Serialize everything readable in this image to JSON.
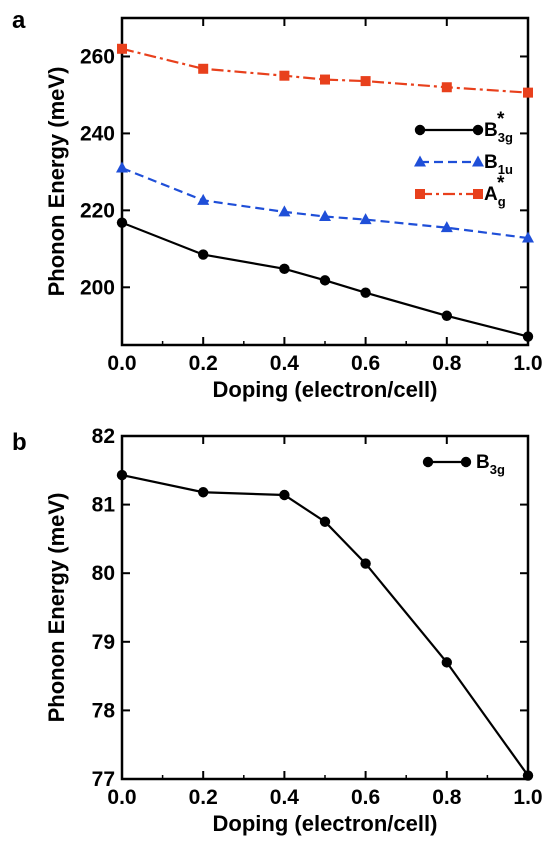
{
  "chart_data": [
    {
      "panel_label": "a",
      "type": "line",
      "xlabel": "Doping (electron/cell)",
      "ylabel": "Phonon Energy (meV)",
      "xlim": [
        0.0,
        1.0
      ],
      "ylim": [
        185,
        270
      ],
      "xticks": [
        0.0,
        0.2,
        0.4,
        0.6,
        0.8,
        1.0
      ],
      "xtick_labels": [
        "0.0",
        "0.2",
        "0.4",
        "0.6",
        "0.8",
        "1.0"
      ],
      "yticks": [
        200,
        220,
        240,
        260
      ],
      "ytick_labels": [
        "200",
        "220",
        "240",
        "260"
      ],
      "grid": false,
      "legend_position": "right",
      "x": [
        0.0,
        0.2,
        0.4,
        0.5,
        0.6,
        0.8,
        1.0
      ],
      "series": [
        {
          "name": "B3g*",
          "legend_base": "B",
          "legend_sub": "3g",
          "legend_sup": "*",
          "color": "#000000",
          "marker": "circle",
          "line_style": "solid",
          "values": [
            216.8,
            208.5,
            204.8,
            201.8,
            198.6,
            192.6,
            187.2
          ]
        },
        {
          "name": "B1u",
          "legend_base": "B",
          "legend_sub": "1u",
          "legend_sup": "",
          "color": "#1f4fd8",
          "marker": "triangle",
          "line_style": "dashed",
          "values": [
            231.0,
            222.6,
            219.6,
            218.4,
            217.6,
            215.5,
            212.8
          ]
        },
        {
          "name": "Ag*",
          "legend_base": "A",
          "legend_sub": "g",
          "legend_sup": "*",
          "color": "#e8401c",
          "marker": "square",
          "line_style": "dashdot",
          "values": [
            262.0,
            256.8,
            255.0,
            254.0,
            253.6,
            252.0,
            250.6
          ]
        }
      ]
    },
    {
      "panel_label": "b",
      "type": "line",
      "xlabel": "Doping (electron/cell)",
      "ylabel": "Phonon Energy (meV)",
      "xlim": [
        0.0,
        1.0
      ],
      "ylim": [
        77,
        82
      ],
      "xticks": [
        0.0,
        0.2,
        0.4,
        0.6,
        0.8,
        1.0
      ],
      "xtick_labels": [
        "0.0",
        "0.2",
        "0.4",
        "0.6",
        "0.8",
        "1.0"
      ],
      "yticks": [
        77,
        78,
        79,
        80,
        81,
        82
      ],
      "ytick_labels": [
        "77",
        "78",
        "79",
        "80",
        "81",
        "82"
      ],
      "grid": false,
      "legend_position": "top-right",
      "x": [
        0.0,
        0.2,
        0.4,
        0.5,
        0.6,
        0.8,
        1.0
      ],
      "series": [
        {
          "name": "B3g",
          "legend_base": "B",
          "legend_sub": "3g",
          "legend_sup": "",
          "color": "#000000",
          "marker": "circle",
          "line_style": "solid",
          "values": [
            81.43,
            81.18,
            81.14,
            80.75,
            80.14,
            78.7,
            77.05
          ]
        }
      ]
    }
  ]
}
